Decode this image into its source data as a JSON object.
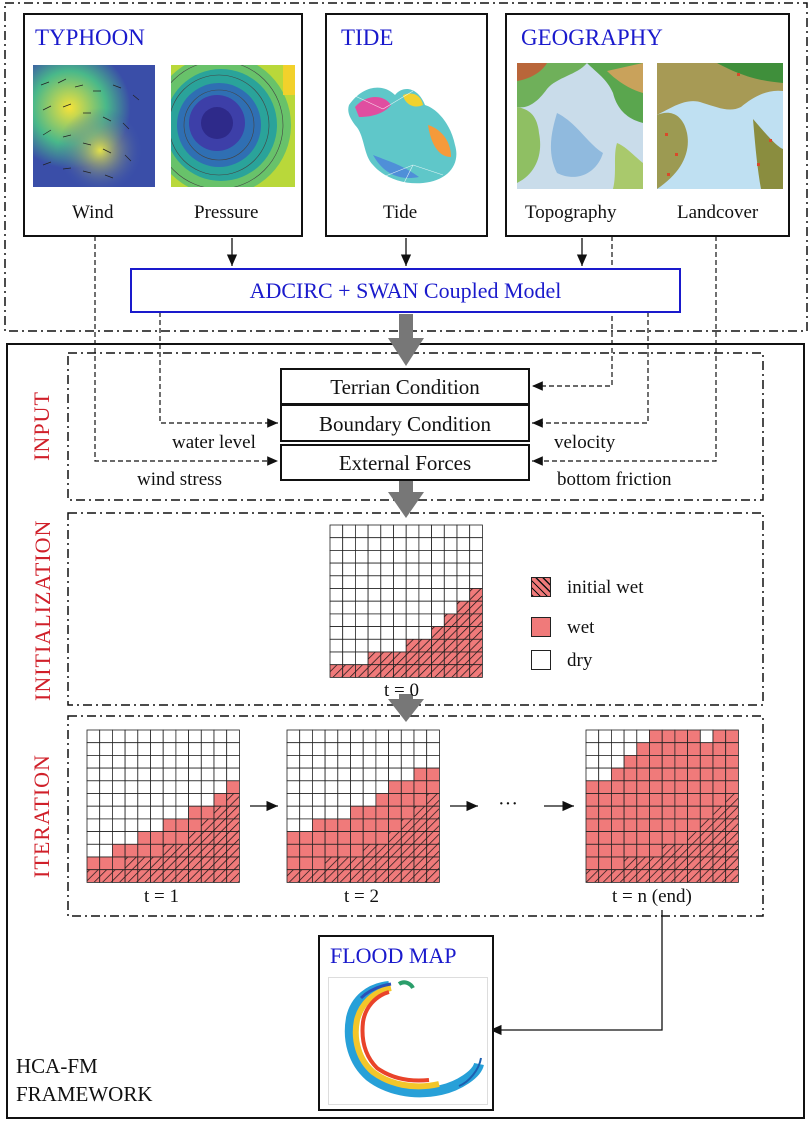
{
  "sources": {
    "typhoon": {
      "title": "TYPHOON",
      "wind_label": "Wind",
      "pressure_label": "Pressure"
    },
    "tide": {
      "title": "TIDE",
      "tide_label": "Tide"
    },
    "geography": {
      "title": "GEOGRAPHY",
      "topography_label": "Topography",
      "landcover_label": "Landcover"
    }
  },
  "coupled_model": "ADCIRC + SWAN Coupled Model",
  "stages": {
    "input": "INPUT",
    "initialization": "INITIALIZATION",
    "iteration": "ITERATION"
  },
  "conditions": {
    "terrain": "Terrian Condition",
    "boundary": "Boundary Condition",
    "external": "External Forces"
  },
  "forcing_labels": {
    "water_level": "water level",
    "wind_stress": "wind stress",
    "velocity": "velocity",
    "bottom_friction": "bottom friction"
  },
  "legend": {
    "initial_wet": "initial wet",
    "wet": "wet",
    "dry": "dry"
  },
  "grids": {
    "t0_label": "t = 0",
    "t1_label": "t = 1",
    "t2_label": "t = 2",
    "tn_label": "t = n (end)",
    "ellipsis": "···",
    "initial_wet_heights": [
      1,
      1,
      1,
      2,
      2,
      2,
      3,
      3,
      4,
      5,
      6,
      7
    ],
    "t1_wet_heights": [
      2,
      2,
      3,
      3,
      4,
      4,
      5,
      5,
      6,
      6,
      7,
      8
    ],
    "t2_wet_heights": [
      4,
      4,
      5,
      5,
      5,
      6,
      6,
      7,
      8,
      8,
      9,
      9
    ],
    "tn_wet_heights": [
      8,
      8,
      9,
      10,
      11,
      12,
      12,
      12,
      12,
      11,
      12,
      12
    ]
  },
  "flood_map": {
    "title": "FLOOD MAP"
  },
  "framework_label": {
    "line1": "HCA-FM",
    "line2": "FRAMEWORK"
  },
  "colors": {
    "blue_title": "#1a1acc",
    "red_stage": "#d0202a",
    "wet_fill": "#f07a7a",
    "arrow_gray": "#777777"
  }
}
